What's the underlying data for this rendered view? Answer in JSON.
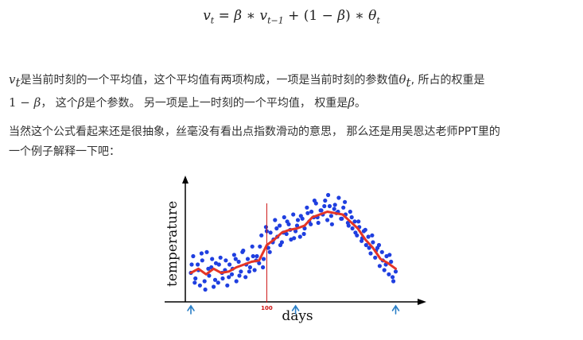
{
  "formula": {
    "v": "v",
    "t": "t",
    "eq": " = ",
    "beta": "β",
    "times": " ∗ ",
    "tminus1": "t−1",
    "plus": " + ",
    "one_minus_open": "(1 − ",
    "close": ")",
    "theta": "θ"
  },
  "paragraph1": {
    "v": "v",
    "t": "t",
    "text1": "是当前时刻的一个平均值，这个平均值有两项构成，一项是当前时刻的参数值",
    "theta": "θ",
    "text2": ", 所占的权重是",
    "one_minus": "1 − ",
    "beta": "β",
    "text3": "， 这个",
    "text4": "是个参数。 另一项是上一时刻的一个平均值， 权重是",
    "text5": "。"
  },
  "paragraph2": {
    "line1": "当然这个公式看起来还是很抽象，丝毫没有看出点指数滑动的意思， 那么还是用吴恩达老师PPT里的",
    "line2": "一个例子解释一下吧："
  },
  "chart_data": {
    "type": "scatter",
    "xlabel": "days",
    "ylabel": "temperature",
    "annotations": [
      "100"
    ],
    "marker_x": 100,
    "xlim": [
      0,
      280
    ],
    "ylim": [
      0,
      80
    ],
    "colors": {
      "points": "#1f3fe0",
      "smooth_line": "#e53526",
      "marker_line": "#cc1111",
      "arrow": "#2a7fc7",
      "axis": "#000000"
    },
    "arrow_days": [
      0,
      138,
      270
    ],
    "series": [
      {
        "kind": "points",
        "x": [
          0,
          3,
          6,
          9,
          12,
          15,
          18,
          21,
          24,
          27,
          30,
          33,
          36,
          39,
          42,
          45,
          48,
          51,
          54,
          57,
          60,
          63,
          66,
          69,
          72,
          75,
          78,
          81,
          84,
          87,
          90,
          93,
          96,
          99,
          102,
          105,
          108,
          111,
          114,
          117,
          120,
          123,
          126,
          129,
          132,
          135,
          138,
          141,
          144,
          147,
          150,
          153,
          156,
          159,
          162,
          165,
          168,
          171,
          174,
          177,
          180,
          183,
          186,
          189,
          192,
          195,
          198,
          201,
          204,
          207,
          210,
          213,
          216,
          219,
          222,
          225,
          228,
          231,
          234,
          237,
          240,
          243,
          246,
          249,
          252,
          255,
          258,
          261,
          264,
          267,
          270
        ],
        "y": [
          18,
          30,
          14,
          24,
          9,
          27,
          12,
          33,
          16,
          22,
          8,
          25,
          11,
          29,
          14,
          20,
          9,
          24,
          17,
          31,
          12,
          26,
          19,
          34,
          15,
          28,
          22,
          37,
          20,
          30,
          25,
          45,
          28,
          51,
          36,
          47,
          40,
          56,
          44,
          52,
          40,
          58,
          46,
          53,
          42,
          60,
          48,
          56,
          44,
          57,
          50,
          65,
          55,
          62,
          58,
          68,
          54,
          63,
          60,
          70,
          56,
          66,
          53,
          64,
          61,
          72,
          57,
          65,
          60,
          54,
          62,
          50,
          55,
          45,
          51,
          41,
          48,
          38,
          44,
          32,
          40,
          29,
          36,
          23,
          33,
          20,
          30,
          17,
          26,
          12,
          19
        ]
      },
      {
        "kind": "points",
        "x": [
          1,
          5,
          10,
          14,
          19,
          23,
          28,
          32,
          37,
          41,
          46,
          50,
          55,
          59,
          64,
          68,
          73,
          77,
          82,
          86,
          91,
          95,
          100,
          104,
          109,
          113,
          118,
          122,
          127,
          131,
          136,
          140,
          145,
          149,
          154,
          158,
          163,
          167,
          172,
          176,
          181,
          185,
          190,
          194,
          199,
          203,
          208,
          212,
          217,
          221,
          226,
          230,
          235,
          239,
          244,
          248,
          253,
          257,
          262,
          266
        ],
        "y": [
          24,
          11,
          20,
          32,
          6,
          21,
          28,
          13,
          24,
          18,
          27,
          15,
          21,
          28,
          16,
          33,
          24,
          19,
          30,
          27,
          37,
          22,
          48,
          33,
          42,
          50,
          38,
          47,
          55,
          49,
          43,
          52,
          59,
          46,
          61,
          53,
          70,
          58,
          63,
          66,
          74,
          59,
          67,
          62,
          57,
          69,
          52,
          58,
          47,
          55,
          43,
          49,
          36,
          45,
          34,
          38,
          27,
          24,
          31,
          15
        ]
      },
      {
        "kind": "line",
        "x": [
          0,
          10,
          20,
          30,
          40,
          50,
          60,
          70,
          80,
          90,
          100,
          110,
          120,
          130,
          140,
          150,
          160,
          170,
          180,
          190,
          200,
          210,
          220,
          230,
          240,
          250,
          260,
          270
        ],
        "y": [
          18,
          21,
          17,
          21,
          18,
          19,
          22,
          24,
          26,
          27,
          38,
          42,
          47,
          49,
          50,
          52,
          58,
          60,
          62,
          61,
          60,
          55,
          50,
          42,
          36,
          28,
          25,
          21
        ]
      }
    ]
  }
}
